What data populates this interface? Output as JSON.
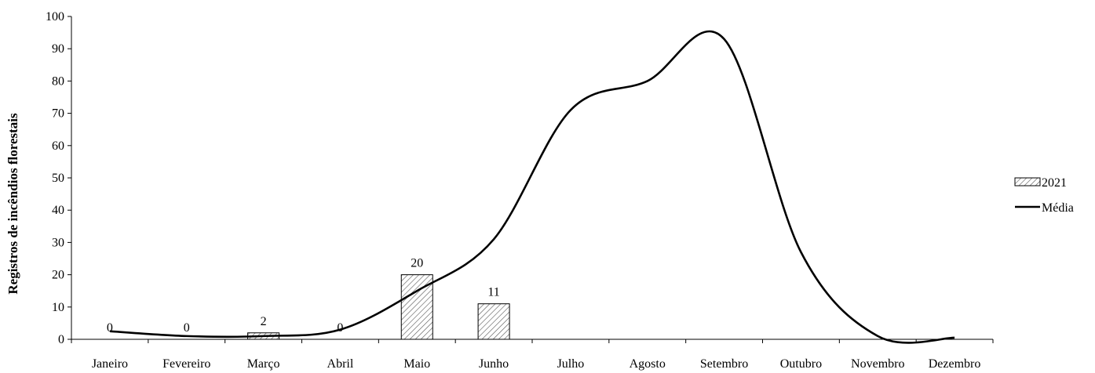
{
  "chart_data": {
    "type": "bar",
    "title": "",
    "xlabel": "",
    "ylabel": "Registros de incêndios florestais",
    "ylim": [
      0,
      100
    ],
    "yticks": [
      0,
      10,
      20,
      30,
      40,
      50,
      60,
      70,
      80,
      90,
      100
    ],
    "categories": [
      "Janeiro",
      "Fevereiro",
      "Março",
      "Abril",
      "Maio",
      "Junho",
      "Julho",
      "Agosto",
      "Setembro",
      "Outubro",
      "Novembro",
      "Dezembro"
    ],
    "series": [
      {
        "name": "2021",
        "kind": "bar",
        "pattern": "diagonal-hatch",
        "values": [
          0,
          0,
          2,
          0,
          20,
          11,
          null,
          null,
          null,
          null,
          null,
          null
        ],
        "labels": [
          "0",
          "0",
          "2",
          "0",
          "20",
          "11"
        ]
      },
      {
        "name": "Média",
        "kind": "line",
        "smooth": true,
        "color": "#000000",
        "values": [
          2.5,
          1,
          1,
          3,
          15,
          31,
          71,
          80,
          93,
          27,
          1,
          0.5
        ]
      }
    ],
    "legend_position": "right",
    "grid": false
  }
}
